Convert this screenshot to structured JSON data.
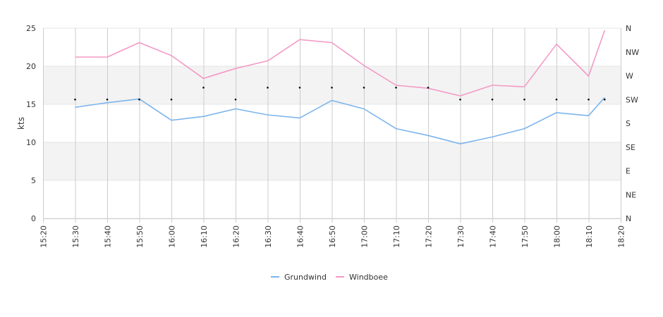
{
  "chart_data": {
    "type": "line",
    "ylabel": "kts",
    "ylim": [
      0,
      25
    ],
    "yticks": [
      0,
      5,
      10,
      15,
      20,
      25
    ],
    "xlim": [
      "15:20",
      "18:20"
    ],
    "xticks": [
      "15:20",
      "15:30",
      "15:40",
      "15:50",
      "16:00",
      "16:10",
      "16:20",
      "16:30",
      "16:40",
      "16:50",
      "17:00",
      "17:10",
      "17:20",
      "17:30",
      "17:40",
      "17:50",
      "18:00",
      "18:10",
      "18:20"
    ],
    "y2ticks": [
      "N",
      "NE",
      "E",
      "SE",
      "S",
      "SW",
      "W",
      "NW",
      "N"
    ],
    "grid": "vertical lines at x ticks, alternating horizontal bands",
    "legend_position": "bottom-center",
    "x": [
      "15:30",
      "15:40",
      "15:50",
      "16:00",
      "16:10",
      "16:20",
      "16:30",
      "16:40",
      "16:50",
      "17:00",
      "17:10",
      "17:20",
      "17:30",
      "17:40",
      "17:50",
      "18:00",
      "18:10",
      "18:15"
    ],
    "series": [
      {
        "name": "Grundwind",
        "color": "#7cb5ec",
        "values": [
          14.6,
          15.2,
          15.7,
          12.9,
          13.4,
          14.4,
          13.6,
          13.2,
          15.5,
          14.4,
          11.8,
          10.9,
          9.8,
          10.7,
          11.8,
          13.9,
          13.5,
          15.9
        ]
      },
      {
        "name": "Windboee",
        "color": "#f39ac6",
        "values": [
          21.2,
          21.2,
          23.1,
          21.4,
          18.4,
          19.7,
          20.7,
          23.5,
          23.1,
          20.1,
          17.5,
          17.1,
          16.1,
          17.5,
          17.3,
          22.9,
          18.7,
          24.7
        ]
      }
    ],
    "direction": {
      "marker_color": "#000000",
      "x": [
        "15:30",
        "15:40",
        "15:50",
        "16:00",
        "16:10",
        "16:20",
        "16:30",
        "16:40",
        "16:50",
        "17:00",
        "17:10",
        "17:20",
        "17:30",
        "17:40",
        "17:50",
        "18:00",
        "18:10",
        "18:15"
      ],
      "values": [
        "SW",
        "SW",
        "SW",
        "SW",
        "WSW",
        "SW",
        "WSW",
        "WSW",
        "WSW",
        "WSW",
        "WSW",
        "WSW",
        "SW",
        "SW",
        "SW",
        "SW",
        "SW",
        "SW"
      ]
    }
  }
}
